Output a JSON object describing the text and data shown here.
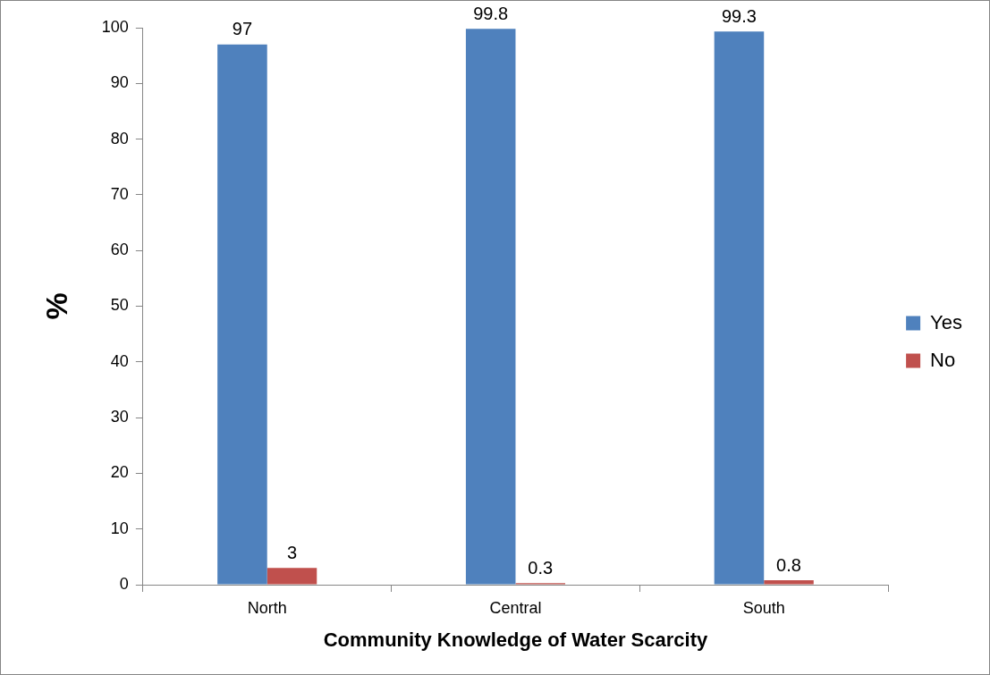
{
  "chart_data": {
    "type": "bar",
    "xlabel": "Community Knowledge of Water Scarcity",
    "ylabel": "%",
    "categories": [
      "North",
      "Central",
      "South"
    ],
    "series": [
      {
        "name": "Yes",
        "color": "#4f81bd",
        "values": [
          97,
          99.8,
          99.3
        ]
      },
      {
        "name": "No",
        "color": "#c0504d",
        "values": [
          3,
          0.3,
          0.8
        ]
      }
    ],
    "ylim": [
      0,
      100
    ],
    "yticks": [
      0,
      10,
      20,
      30,
      40,
      50,
      60,
      70,
      80,
      90,
      100
    ],
    "grid": false,
    "legend": "right",
    "data_labels": true
  }
}
